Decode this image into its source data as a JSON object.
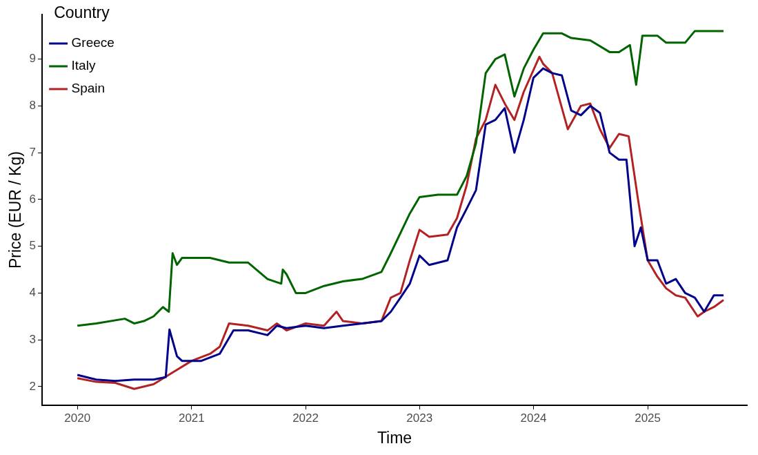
{
  "chart_data": {
    "type": "line",
    "xlabel": "Time",
    "ylabel": "Price (EUR / Kg)",
    "legend_title": "Country",
    "legend": "top left",
    "grid": false,
    "marker": "none",
    "line_style": "solid",
    "xlim": [
      "2019-09-10",
      "2025-11-15"
    ],
    "xticks": [
      "2020",
      "2021",
      "2022",
      "2023",
      "2024",
      "2025"
    ],
    "ylim": [
      1.6,
      9.95
    ],
    "yticks": [
      2,
      3,
      4,
      5,
      6,
      7,
      8,
      9
    ],
    "series": [
      {
        "name": "Greece",
        "color": "#00008b",
        "x": [
          "2020-01",
          "2020-03",
          "2020-05",
          "2020-07",
          "2020-09",
          "2020-10-10",
          "2020-10-22",
          "2020-11-15",
          "2020-12",
          "2021-02",
          "2021-04",
          "2021-05-15",
          "2021-07",
          "2021-09",
          "2021-10",
          "2021-11",
          "2022-01",
          "2022-03",
          "2022-05",
          "2022-07",
          "2022-09",
          "2022-10",
          "2022-11",
          "2022-12",
          "2023-01",
          "2023-02",
          "2023-04",
          "2023-05",
          "2023-06",
          "2023-07",
          "2023-08",
          "2023-09",
          "2023-10",
          "2023-11",
          "2023-12",
          "2024-01",
          "2024-02",
          "2024-03",
          "2024-04",
          "2024-05",
          "2024-06",
          "2024-07",
          "2024-08",
          "2024-09",
          "2024-10",
          "2024-10-25",
          "2024-11-20",
          "2024-12-10",
          "2025-01",
          "2025-02",
          "2025-03",
          "2025-04",
          "2025-05",
          "2025-06",
          "2025-07",
          "2025-08",
          "2025-09"
        ],
        "values": [
          2.25,
          2.15,
          2.12,
          2.15,
          2.15,
          2.2,
          3.22,
          2.65,
          2.55,
          2.55,
          2.7,
          3.2,
          3.2,
          3.1,
          3.3,
          3.25,
          3.3,
          3.25,
          3.3,
          3.35,
          3.4,
          3.6,
          3.9,
          4.2,
          4.8,
          4.6,
          4.7,
          5.4,
          5.8,
          6.2,
          7.6,
          7.7,
          7.95,
          7.0,
          7.7,
          8.6,
          8.8,
          8.7,
          8.65,
          7.9,
          7.8,
          8.0,
          7.85,
          7.0,
          6.85,
          6.85,
          5.0,
          5.4,
          4.7,
          4.7,
          4.2,
          4.3,
          4.0,
          3.9,
          3.6,
          3.95,
          3.95
        ]
      },
      {
        "name": "Italy",
        "color": "#006400",
        "x": [
          "2020-01",
          "2020-03",
          "2020-06",
          "2020-07",
          "2020-08",
          "2020-09",
          "2020-10",
          "2020-10-20",
          "2020-11-01",
          "2020-11-15",
          "2020-12",
          "2021-03",
          "2021-05",
          "2021-07",
          "2021-09",
          "2021-10-15",
          "2021-10-20",
          "2021-11",
          "2021-12",
          "2022-01",
          "2022-03",
          "2022-05",
          "2022-07",
          "2022-09",
          "2022-10",
          "2022-12",
          "2023-01",
          "2023-03",
          "2023-05",
          "2023-06",
          "2023-07",
          "2023-08",
          "2023-09",
          "2023-10",
          "2023-11",
          "2023-12",
          "2024-01",
          "2024-02",
          "2024-04",
          "2024-05",
          "2024-07",
          "2024-09",
          "2024-10",
          "2024-11-05",
          "2024-11-25",
          "2024-12-15",
          "2025-02",
          "2025-03",
          "2025-05",
          "2025-06",
          "2025-09"
        ],
        "values": [
          3.3,
          3.35,
          3.45,
          3.35,
          3.4,
          3.5,
          3.7,
          3.6,
          4.85,
          4.6,
          4.75,
          4.75,
          4.65,
          4.65,
          4.3,
          4.2,
          4.5,
          4.4,
          4.0,
          4.0,
          4.15,
          4.25,
          4.3,
          4.45,
          4.85,
          5.7,
          6.05,
          6.1,
          6.1,
          6.5,
          7.2,
          8.7,
          9.0,
          9.1,
          8.2,
          8.8,
          9.2,
          9.55,
          9.55,
          9.45,
          9.4,
          9.15,
          9.15,
          9.3,
          8.45,
          9.5,
          9.5,
          9.35,
          9.35,
          9.6,
          9.6
        ]
      },
      {
        "name": "Spain",
        "color": "#b22222",
        "x": [
          "2020-01",
          "2020-03",
          "2020-05",
          "2020-07",
          "2020-09",
          "2020-11",
          "2021-01",
          "2021-03",
          "2021-04",
          "2021-05",
          "2021-07",
          "2021-09",
          "2021-10",
          "2021-11",
          "2022-01",
          "2022-03",
          "2022-04-10",
          "2022-05",
          "2022-07",
          "2022-09",
          "2022-10",
          "2022-11",
          "2022-12",
          "2023-01",
          "2023-02",
          "2023-04",
          "2023-05",
          "2023-06",
          "2023-07",
          "2023-08",
          "2023-09",
          "2023-10",
          "2023-11",
          "2023-12",
          "2024-01-20",
          "2024-02",
          "2024-03",
          "2024-04-20",
          "2024-06",
          "2024-07",
          "2024-08",
          "2024-09",
          "2024-10",
          "2024-11",
          "2024-12",
          "2025-01",
          "2025-02",
          "2025-03",
          "2025-04",
          "2025-05",
          "2025-06-10",
          "2025-07",
          "2025-08",
          "2025-09"
        ],
        "values": [
          2.18,
          2.1,
          2.08,
          1.95,
          2.05,
          2.3,
          2.55,
          2.7,
          2.85,
          3.35,
          3.3,
          3.2,
          3.35,
          3.2,
          3.35,
          3.3,
          3.6,
          3.4,
          3.35,
          3.4,
          3.9,
          4.0,
          4.7,
          5.35,
          5.2,
          5.25,
          5.6,
          6.3,
          7.3,
          7.7,
          8.45,
          8.05,
          7.7,
          8.3,
          9.05,
          8.9,
          8.7,
          7.5,
          8.0,
          8.05,
          7.5,
          7.1,
          7.4,
          7.35,
          6.0,
          4.7,
          4.35,
          4.1,
          3.95,
          3.9,
          3.5,
          3.6,
          3.7,
          3.85
        ]
      }
    ]
  }
}
